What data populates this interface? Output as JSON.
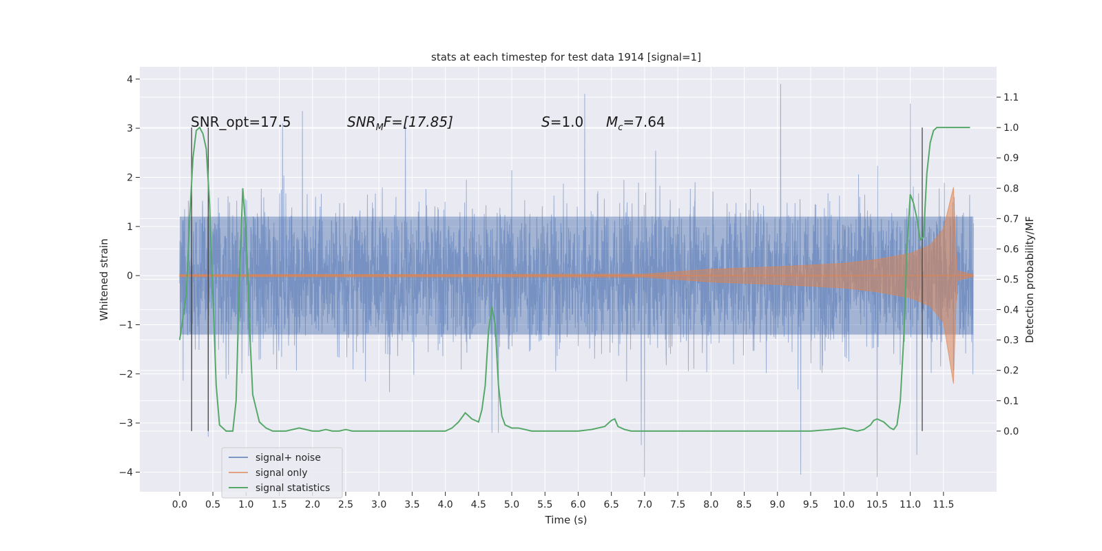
{
  "chart_data": {
    "type": "line",
    "title": "stats at each timestep for test data 1914 [signal=1]",
    "xlabel": "Time (s)",
    "ylabel": "Whitened strain",
    "y2label": "Detection probability/MF",
    "xlim": [
      -0.6,
      12.3
    ],
    "ylim": [
      -4.4,
      4.25
    ],
    "y2lim": [
      -0.2,
      1.2
    ],
    "x_ticks": [
      0.0,
      0.5,
      1.0,
      1.5,
      2.0,
      2.5,
      3.0,
      3.5,
      4.0,
      4.5,
      5.0,
      5.5,
      6.0,
      6.5,
      7.0,
      7.5,
      8.0,
      8.5,
      9.0,
      9.5,
      10.0,
      10.5,
      11.0,
      11.5
    ],
    "x_tick_labels": [
      "0.0",
      "0.5",
      "1.0",
      "1.5",
      "2.0",
      "2.5",
      "3.0",
      "3.5",
      "4.0",
      "4.5",
      "5.0",
      "5.5",
      "6.0",
      "6.5",
      "7.0",
      "7.5",
      "8.0",
      "8.5",
      "9.0",
      "9.5",
      "10.0",
      "10.5",
      "11.0",
      "11.5"
    ],
    "y_ticks": [
      -4,
      -3,
      -2,
      -1,
      0,
      1,
      2,
      3,
      4
    ],
    "y_tick_labels": [
      "−4",
      "−3",
      "−2",
      "−1",
      "0",
      "1",
      "2",
      "3",
      "4"
    ],
    "y2_ticks": [
      0.0,
      0.1,
      0.2,
      0.3,
      0.4,
      0.5,
      0.6,
      0.7,
      0.8,
      0.9,
      1.0,
      1.1
    ],
    "y2_tick_labels": [
      "0.0",
      "0.1",
      "0.2",
      "0.3",
      "0.4",
      "0.5",
      "0.6",
      "0.7",
      "0.8",
      "0.9",
      "1.0",
      "1.1"
    ],
    "grid": true,
    "legend_position": "lower-left",
    "annotations": {
      "snr_opt": "SNR_opt=17.5",
      "snr_mf_main": "SNR",
      "snr_mf_sub": "M",
      "snr_mf_rest": "F=[17.85]",
      "s_italic": "S",
      "s_rest": "=1.0",
      "mc_italic": "M",
      "mc_sub": "c",
      "mc_rest": "=7.64"
    },
    "vertical_markers": [
      0.18,
      0.43,
      11.18
    ],
    "series": [
      {
        "name": "signal+ noise",
        "color": "#4c72b0",
        "x_range": [
          0.0,
          11.95
        ],
        "typical_band": [
          -1.2,
          1.2
        ],
        "extremes": [
          {
            "x": 1.55,
            "y": 3.1
          },
          {
            "x": 1.85,
            "y": 3.35
          },
          {
            "x": 3.4,
            "y": 3.05
          },
          {
            "x": 6.1,
            "y": 3.7
          },
          {
            "x": 9.05,
            "y": 3.9
          },
          {
            "x": 11.0,
            "y": 3.5
          },
          {
            "x": 6.95,
            "y": -3.45
          },
          {
            "x": 7.0,
            "y": -4.1
          },
          {
            "x": 9.35,
            "y": -4.05
          },
          {
            "x": 10.5,
            "y": -4.1
          },
          {
            "x": 11.1,
            "y": -3.65
          },
          {
            "x": 0.43,
            "y": -3.28
          },
          {
            "x": 4.7,
            "y": -3.2
          },
          {
            "x": 4.8,
            "y": -3.2
          }
        ]
      },
      {
        "name": "signal only",
        "color": "#dd8452",
        "envelope": [
          {
            "x": 0.0,
            "y": 0.02
          },
          {
            "x": 7.0,
            "y": 0.03
          },
          {
            "x": 8.0,
            "y": 0.13
          },
          {
            "x": 9.0,
            "y": 0.18
          },
          {
            "x": 10.0,
            "y": 0.25
          },
          {
            "x": 10.5,
            "y": 0.33
          },
          {
            "x": 11.0,
            "y": 0.45
          },
          {
            "x": 11.3,
            "y": 0.62
          },
          {
            "x": 11.5,
            "y": 0.95
          },
          {
            "x": 11.65,
            "y": 1.8
          },
          {
            "x": 11.7,
            "y": 0.1
          },
          {
            "x": 11.95,
            "y": 0.02
          }
        ],
        "lower_extreme": {
          "x": 11.68,
          "y": -2.2
        }
      },
      {
        "name": "signal statistics",
        "color": "#55a868",
        "axis": "right",
        "x": [
          0.0,
          0.1,
          0.15,
          0.2,
          0.25,
          0.3,
          0.35,
          0.4,
          0.45,
          0.5,
          0.55,
          0.6,
          0.7,
          0.8,
          0.85,
          0.9,
          0.95,
          1.0,
          1.05,
          1.1,
          1.2,
          1.3,
          1.4,
          1.5,
          1.6,
          1.7,
          1.8,
          1.9,
          2.0,
          2.1,
          2.2,
          2.3,
          2.4,
          2.5,
          2.6,
          2.8,
          3.0,
          3.2,
          3.4,
          3.6,
          3.8,
          4.0,
          4.1,
          4.2,
          4.3,
          4.4,
          4.5,
          4.55,
          4.6,
          4.65,
          4.7,
          4.75,
          4.8,
          4.85,
          4.9,
          5.0,
          5.1,
          5.2,
          5.3,
          5.5,
          5.8,
          6.0,
          6.2,
          6.3,
          6.4,
          6.5,
          6.55,
          6.6,
          6.7,
          6.8,
          7.0,
          7.2,
          7.5,
          8.0,
          8.5,
          9.0,
          9.5,
          9.8,
          10.0,
          10.1,
          10.2,
          10.3,
          10.4,
          10.45,
          10.5,
          10.6,
          10.7,
          10.75,
          10.8,
          10.85,
          10.9,
          10.95,
          11.0,
          11.05,
          11.1,
          11.15,
          11.2,
          11.25,
          11.3,
          11.35,
          11.4,
          11.5,
          11.7,
          11.9
        ],
        "y": [
          0.3,
          0.45,
          0.7,
          0.9,
          0.99,
          1.0,
          0.98,
          0.93,
          0.75,
          0.45,
          0.15,
          0.02,
          0.0,
          0.0,
          0.1,
          0.5,
          0.8,
          0.65,
          0.35,
          0.12,
          0.03,
          0.01,
          0.0,
          0.0,
          0.0,
          0.005,
          0.01,
          0.005,
          0.0,
          0.0,
          0.005,
          0.0,
          0.0,
          0.005,
          0.0,
          0.0,
          0.0,
          0.0,
          0.0,
          0.0,
          0.0,
          0.0,
          0.01,
          0.03,
          0.06,
          0.04,
          0.03,
          0.07,
          0.15,
          0.33,
          0.41,
          0.35,
          0.15,
          0.05,
          0.02,
          0.01,
          0.01,
          0.005,
          0.0,
          0.0,
          0.0,
          0.0,
          0.005,
          0.01,
          0.015,
          0.035,
          0.04,
          0.015,
          0.005,
          0.0,
          0.0,
          0.0,
          0.0,
          0.0,
          0.0,
          0.0,
          0.0,
          0.005,
          0.01,
          0.005,
          0.0,
          0.005,
          0.02,
          0.035,
          0.04,
          0.03,
          0.01,
          0.005,
          0.02,
          0.1,
          0.3,
          0.6,
          0.78,
          0.75,
          0.7,
          0.63,
          0.64,
          0.85,
          0.95,
          0.99,
          1.0,
          1.0,
          1.0,
          1.0
        ]
      }
    ]
  }
}
